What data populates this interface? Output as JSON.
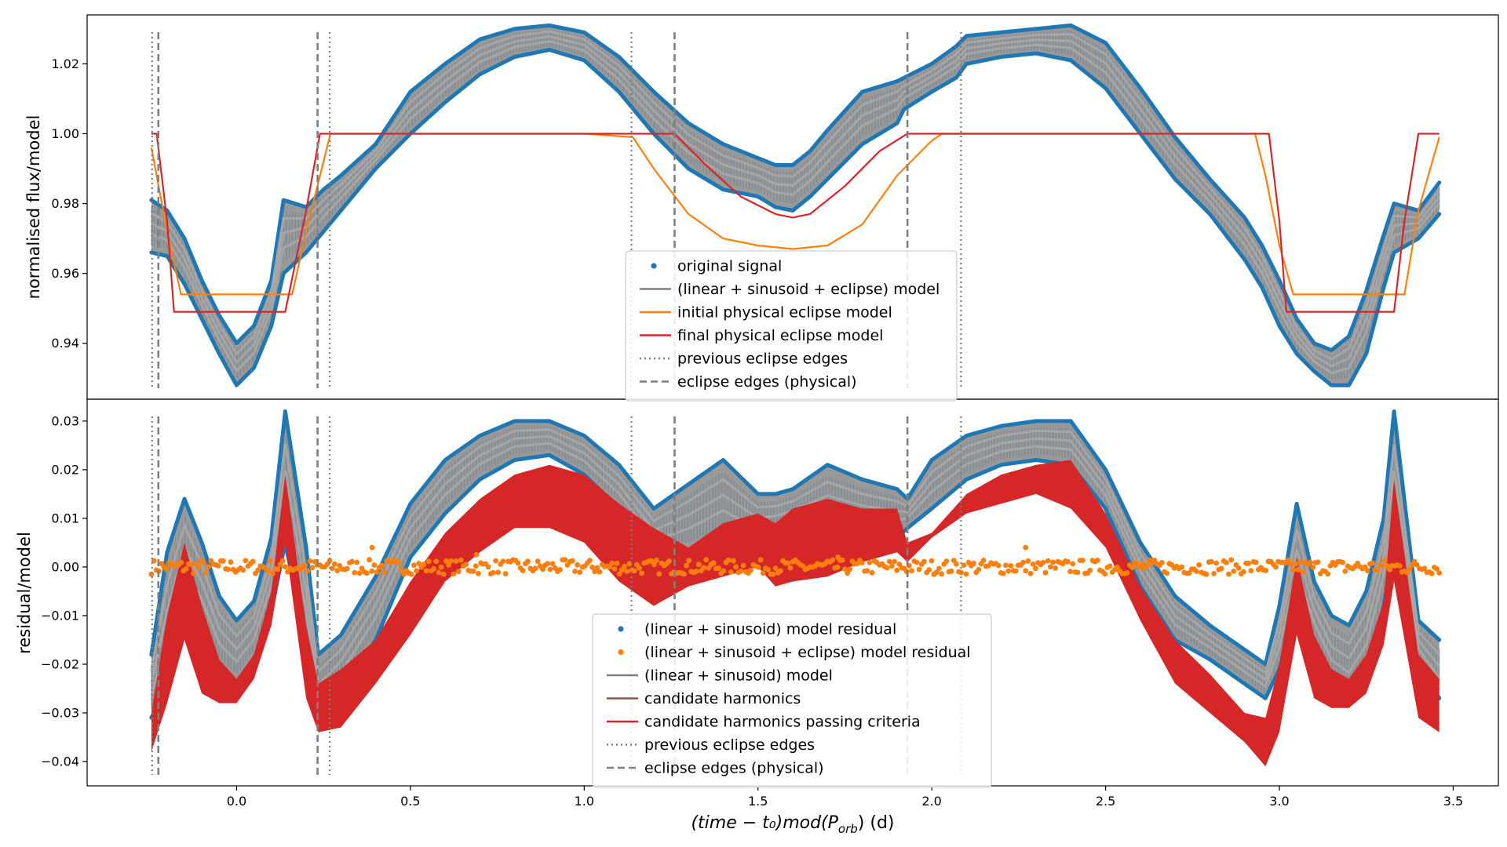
{
  "figure": {
    "xlabel_main": "(time − t₀)mod(P",
    "xlabel_sub": "orb",
    "xlabel_end": ") (d)"
  },
  "colors": {
    "signal": "#1f77b4",
    "model_gray": "#7f7f7f",
    "fill_gray": "#999999",
    "initial": "#ff7f0e",
    "final": "#d62728",
    "candidate": "#8c564b",
    "passing": "#d62728",
    "edges": "#7f7f7f"
  },
  "chart_data": [
    {
      "type": "line",
      "panel": "top",
      "ylabel": "normalised flux/model",
      "xlim": [
        -0.43,
        3.63
      ],
      "ylim": [
        0.924,
        1.034
      ],
      "xticks": [
        "0.0",
        "0.5",
        "1.0",
        "1.5",
        "2.0",
        "2.5",
        "3.0",
        "3.5"
      ],
      "xtick_values": [
        0,
        0.5,
        1.0,
        1.5,
        2.0,
        2.5,
        3.0,
        3.5
      ],
      "yticks": [
        "0.94",
        "0.96",
        "0.98",
        "1.00",
        "1.02"
      ],
      "ytick_values": [
        0.94,
        0.96,
        0.98,
        1.0,
        1.02
      ],
      "legend": [
        "original signal",
        "(linear + sinusoid + eclipse) model",
        "initial physical eclipse model",
        "final physical eclipse model",
        "previous eclipse edges",
        "eclipse edges (physical)"
      ],
      "legend_position": "lower-center",
      "series": [
        {
          "name": "original signal",
          "band": true,
          "x": [
            -0.245,
            -0.2,
            -0.15,
            -0.1,
            -0.05,
            0.0,
            0.05,
            0.1,
            0.135,
            0.2,
            0.25,
            0.3,
            0.4,
            0.5,
            0.6,
            0.7,
            0.8,
            0.9,
            1.0,
            1.1,
            1.2,
            1.3,
            1.4,
            1.5,
            1.55,
            1.6,
            1.65,
            1.7,
            1.8,
            1.9,
            1.92,
            2.0,
            2.07,
            2.1,
            2.2,
            2.3,
            2.4,
            2.5,
            2.6,
            2.7,
            2.8,
            2.9,
            2.95,
            3.0,
            3.05,
            3.1,
            3.15,
            3.2,
            3.25,
            3.3,
            3.33,
            3.4,
            3.46
          ],
          "upper": [
            0.981,
            0.978,
            0.97,
            0.958,
            0.948,
            0.94,
            0.945,
            0.958,
            0.981,
            0.979,
            0.984,
            0.988,
            0.997,
            1.012,
            1.02,
            1.027,
            1.03,
            1.031,
            1.029,
            1.022,
            1.012,
            1.003,
            0.997,
            0.993,
            0.991,
            0.991,
            0.995,
            1.001,
            1.012,
            1.015,
            1.016,
            1.02,
            1.025,
            1.028,
            1.029,
            1.03,
            1.031,
            1.026,
            1.013,
            0.999,
            0.987,
            0.976,
            0.968,
            0.958,
            0.947,
            0.94,
            0.938,
            0.942,
            0.955,
            0.971,
            0.98,
            0.978,
            0.986
          ],
          "lower": [
            0.966,
            0.965,
            0.957,
            0.947,
            0.937,
            0.928,
            0.933,
            0.945,
            0.96,
            0.966,
            0.972,
            0.978,
            0.99,
            1.0,
            1.009,
            1.017,
            1.022,
            1.024,
            1.021,
            1.012,
            1.0,
            0.99,
            0.984,
            0.982,
            0.979,
            0.978,
            0.982,
            0.987,
            0.997,
            1.003,
            1.007,
            1.012,
            1.016,
            1.02,
            1.022,
            1.023,
            1.021,
            1.013,
            1.0,
            0.987,
            0.977,
            0.964,
            0.956,
            0.945,
            0.937,
            0.932,
            0.928,
            0.928,
            0.937,
            0.956,
            0.966,
            0.97,
            0.977
          ]
        },
        {
          "name": "initial physical eclipse model",
          "x": [
            -0.245,
            -0.2,
            -0.16,
            -0.1,
            0.0,
            0.1,
            0.16,
            0.2,
            0.27,
            0.5,
            1.0,
            1.14,
            1.2,
            1.3,
            1.4,
            1.5,
            1.6,
            1.7,
            1.8,
            1.9,
            2.0,
            2.03,
            2.5,
            2.93,
            2.96,
            3.0,
            3.04,
            3.1,
            3.2,
            3.3,
            3.36,
            3.4,
            3.46
          ],
          "y": [
            0.996,
            0.972,
            0.954,
            0.954,
            0.954,
            0.954,
            0.954,
            0.972,
            1.0,
            1.0,
            1.0,
            0.999,
            0.99,
            0.977,
            0.97,
            0.968,
            0.967,
            0.968,
            0.974,
            0.988,
            0.998,
            1.0,
            1.0,
            1.0,
            0.988,
            0.968,
            0.954,
            0.954,
            0.954,
            0.954,
            0.954,
            0.978,
            0.999
          ]
        },
        {
          "name": "final physical eclipse model",
          "x": [
            -0.245,
            -0.23,
            -0.2,
            -0.18,
            -0.1,
            0.0,
            0.1,
            0.14,
            0.2,
            0.24,
            0.5,
            1.0,
            1.26,
            1.35,
            1.45,
            1.55,
            1.6,
            1.65,
            1.75,
            1.85,
            1.93,
            2.5,
            2.97,
            3.0,
            3.02,
            3.1,
            3.2,
            3.3,
            3.33,
            3.36,
            3.4,
            3.46
          ],
          "y": [
            1.0,
            1.0,
            0.975,
            0.949,
            0.949,
            0.949,
            0.949,
            0.949,
            0.978,
            1.0,
            1.0,
            1.0,
            1.0,
            0.991,
            0.982,
            0.977,
            0.976,
            0.977,
            0.985,
            0.995,
            1.0,
            1.0,
            1.0,
            0.975,
            0.949,
            0.949,
            0.949,
            0.949,
            0.949,
            0.975,
            1.0,
            1.0
          ]
        }
      ],
      "vlines": [
        {
          "x": -0.243,
          "style": "dotted"
        },
        {
          "x": 0.268,
          "style": "dotted"
        },
        {
          "x": 1.136,
          "style": "dotted"
        },
        {
          "x": 2.084,
          "style": "dotted"
        },
        {
          "x": -0.225,
          "style": "dashed"
        },
        {
          "x": 0.233,
          "style": "dashed"
        },
        {
          "x": 1.26,
          "style": "dashed"
        },
        {
          "x": 1.93,
          "style": "dashed"
        }
      ]
    },
    {
      "type": "line",
      "panel": "bottom",
      "ylabel": "residual/model",
      "xlabel": "(time − t₀)mod(P_orb) (d)",
      "xlim": [
        -0.43,
        3.63
      ],
      "ylim": [
        -0.045,
        0.0345
      ],
      "xticks": [
        "0.0",
        "0.5",
        "1.0",
        "1.5",
        "2.0",
        "2.5",
        "3.0",
        "3.5"
      ],
      "xtick_values": [
        0,
        0.5,
        1.0,
        1.5,
        2.0,
        2.5,
        3.0,
        3.5
      ],
      "yticks": [
        "−0.04",
        "−0.03",
        "−0.02",
        "−0.01",
        "0.00",
        "0.01",
        "0.02",
        "0.03"
      ],
      "ytick_values": [
        -0.04,
        -0.03,
        -0.02,
        -0.01,
        0.0,
        0.01,
        0.02,
        0.03
      ],
      "legend": [
        "(linear + sinusoid) model residual",
        "(linear + sinusoid + eclipse) model residual",
        "(linear + sinusoid) model",
        "candidate harmonics",
        "candidate harmonics passing criteria",
        "previous eclipse edges",
        "eclipse edges (physical)"
      ],
      "legend_position": "lower-center",
      "series": [
        {
          "name": "(linear + sinusoid) model residual",
          "band": true,
          "x": [
            -0.245,
            -0.2,
            -0.15,
            -0.1,
            -0.05,
            0.0,
            0.05,
            0.1,
            0.14,
            0.2,
            0.235,
            0.3,
            0.4,
            0.5,
            0.6,
            0.7,
            0.8,
            0.9,
            1.0,
            1.1,
            1.2,
            1.3,
            1.4,
            1.5,
            1.55,
            1.6,
            1.7,
            1.8,
            1.9,
            1.93,
            2.0,
            2.1,
            2.2,
            2.3,
            2.4,
            2.5,
            2.6,
            2.7,
            2.8,
            2.9,
            2.96,
            3.0,
            3.05,
            3.1,
            3.15,
            3.2,
            3.25,
            3.3,
            3.33,
            3.4,
            3.46
          ],
          "upper": [
            -0.018,
            0.003,
            0.014,
            0.005,
            -0.006,
            -0.011,
            -0.007,
            0.006,
            0.032,
            0.004,
            -0.018,
            -0.014,
            -0.002,
            0.013,
            0.022,
            0.027,
            0.03,
            0.03,
            0.027,
            0.021,
            0.012,
            0.017,
            0.022,
            0.015,
            0.015,
            0.016,
            0.021,
            0.018,
            0.016,
            0.014,
            0.022,
            0.027,
            0.029,
            0.03,
            0.03,
            0.02,
            0.005,
            -0.006,
            -0.012,
            -0.017,
            -0.02,
            -0.008,
            0.013,
            -0.003,
            -0.01,
            -0.012,
            -0.005,
            0.01,
            0.032,
            -0.011,
            -0.015
          ],
          "lower": [
            -0.031,
            -0.024,
            -0.008,
            -0.013,
            -0.021,
            -0.024,
            -0.019,
            -0.009,
            0.005,
            -0.016,
            -0.032,
            -0.026,
            -0.015,
            0.002,
            0.011,
            0.018,
            0.022,
            0.023,
            0.019,
            0.012,
            0.002,
            0.003,
            0.006,
            0.004,
            0.005,
            0.006,
            0.007,
            0.006,
            0.006,
            0.008,
            0.012,
            0.018,
            0.021,
            0.022,
            0.021,
            0.012,
            -0.004,
            -0.015,
            -0.019,
            -0.024,
            -0.027,
            -0.021,
            -0.008,
            -0.016,
            -0.024,
            -0.027,
            -0.022,
            -0.008,
            0.005,
            -0.02,
            -0.027
          ]
        },
        {
          "name": "candidate harmonics passing criteria",
          "band": true,
          "x": [
            -0.245,
            -0.2,
            -0.15,
            -0.1,
            -0.05,
            0.0,
            0.05,
            0.1,
            0.14,
            0.2,
            0.235,
            0.3,
            0.4,
            0.5,
            0.6,
            0.7,
            0.8,
            0.9,
            1.0,
            1.1,
            1.2,
            1.3,
            1.4,
            1.5,
            1.55,
            1.6,
            1.7,
            1.8,
            1.9,
            1.93,
            2.0,
            2.1,
            2.2,
            2.3,
            2.4,
            2.5,
            2.6,
            2.7,
            2.8,
            2.9,
            2.96,
            3.0,
            3.05,
            3.1,
            3.15,
            3.2,
            3.25,
            3.3,
            3.33,
            3.4,
            3.46
          ],
          "upper": [
            -0.03,
            -0.01,
            0.005,
            -0.008,
            -0.019,
            -0.023,
            -0.018,
            -0.005,
            0.019,
            -0.012,
            -0.024,
            -0.021,
            -0.015,
            -0.003,
            0.007,
            0.014,
            0.019,
            0.021,
            0.019,
            0.013,
            0.008,
            0.004,
            0.009,
            0.011,
            0.009,
            0.012,
            0.014,
            0.012,
            0.012,
            0.005,
            0.007,
            0.015,
            0.019,
            0.021,
            0.022,
            0.011,
            -0.004,
            -0.015,
            -0.022,
            -0.03,
            -0.031,
            -0.02,
            0.002,
            -0.014,
            -0.021,
            -0.023,
            -0.018,
            -0.007,
            0.018,
            -0.018,
            -0.023
          ],
          "lower": [
            -0.038,
            -0.028,
            -0.015,
            -0.026,
            -0.028,
            -0.028,
            -0.023,
            -0.012,
            0.005,
            -0.027,
            -0.034,
            -0.033,
            -0.024,
            -0.014,
            -0.003,
            0.003,
            0.008,
            0.008,
            0.005,
            -0.003,
            -0.008,
            -0.004,
            -0.002,
            0.0,
            -0.004,
            -0.003,
            -0.002,
            0.001,
            0.003,
            0.001,
            0.006,
            0.011,
            0.013,
            0.015,
            0.012,
            0.004,
            -0.011,
            -0.024,
            -0.03,
            -0.036,
            -0.041,
            -0.034,
            -0.014,
            -0.027,
            -0.029,
            -0.029,
            -0.026,
            -0.016,
            -0.003,
            -0.031,
            -0.034
          ]
        },
        {
          "name": "(linear + sinusoid + eclipse) model residual",
          "x": [
            -0.245,
            3.46
          ],
          "y": [
            0.0,
            0.0
          ],
          "scatter_band": 0.0015
        }
      ],
      "vlines": [
        {
          "x": -0.243,
          "style": "dotted"
        },
        {
          "x": 0.268,
          "style": "dotted"
        },
        {
          "x": 1.136,
          "style": "dotted"
        },
        {
          "x": 2.084,
          "style": "dotted"
        },
        {
          "x": -0.225,
          "style": "dashed"
        },
        {
          "x": 0.233,
          "style": "dashed"
        },
        {
          "x": 1.26,
          "style": "dashed"
        },
        {
          "x": 1.93,
          "style": "dashed"
        }
      ]
    }
  ]
}
